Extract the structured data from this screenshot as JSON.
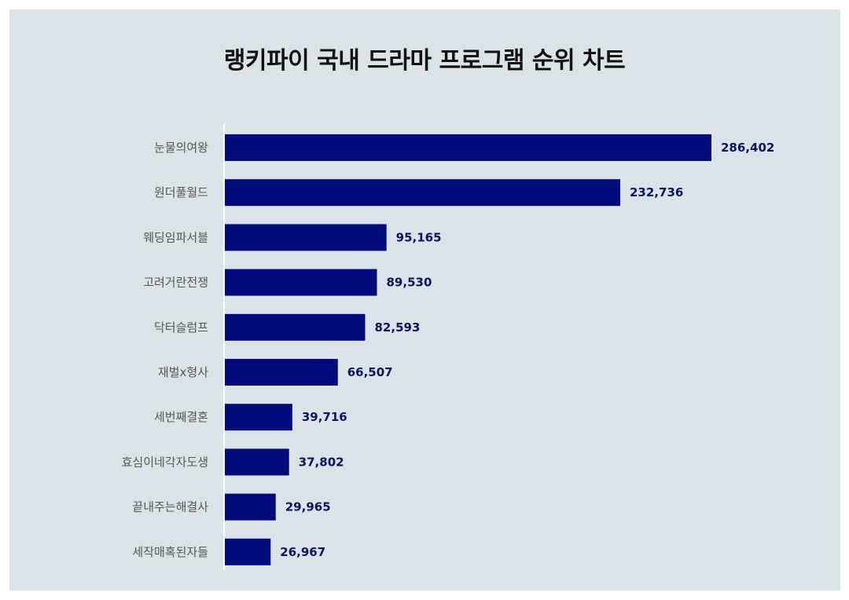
{
  "colors": {
    "background": "#dae4e8",
    "bar": "#000c7b",
    "value_label": "#0a1560",
    "category_label": "#555555",
    "axis_line": "#ffffff"
  },
  "chart_data": {
    "type": "bar",
    "orientation": "horizontal",
    "title": "랭키파이 국내 드라마 프로그램 순위 차트",
    "xlabel": "",
    "ylabel": "",
    "xlim": [
      0,
      300000
    ],
    "grid": false,
    "legend": "none",
    "categories": [
      "눈물의여왕",
      "원더풀월드",
      "웨딩임파서블",
      "고려거란전쟁",
      "닥터슬럼프",
      "재벌x형사",
      "세번째결혼",
      "효심이네각자도생",
      "끝내주는해결사",
      "세작매혹된자들"
    ],
    "values": [
      286402,
      232736,
      95165,
      89530,
      82593,
      66507,
      39716,
      37802,
      29965,
      26967
    ],
    "value_labels": [
      "286,402",
      "232,736",
      "95,165",
      "89,530",
      "82,593",
      "66,507",
      "39,716",
      "37,802",
      "29,965",
      "26,967"
    ]
  }
}
